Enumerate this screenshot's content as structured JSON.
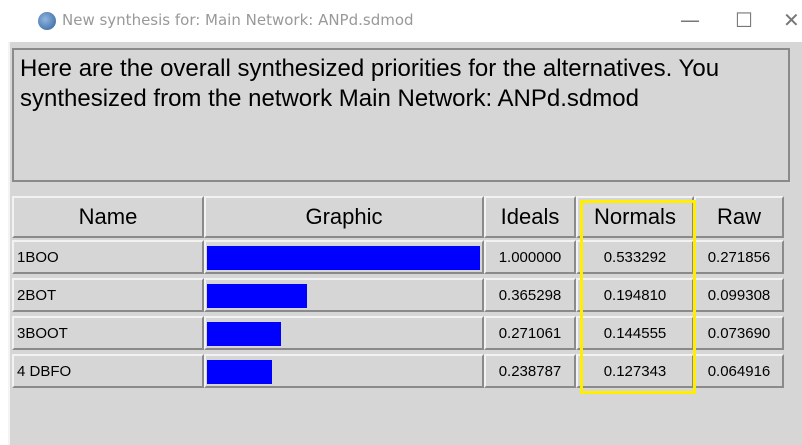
{
  "window": {
    "title": "New synthesis for: Main Network: ANPd.sdmod"
  },
  "message": "Here are the overall synthesized priorities for the alternatives.  You synthesized from the network Main Network: ANPd.sdmod",
  "table": {
    "headers": [
      "Name",
      "Graphic",
      "Ideals",
      "Normals",
      "Raw"
    ],
    "rows": [
      [
        "1BOO",
        "1.000000",
        "0.533292",
        "0.271856"
      ],
      [
        "2BOT",
        "0.365298",
        "0.194810",
        "0.099308"
      ],
      [
        "3BOOT",
        "0.271061",
        "0.144555",
        "0.073690"
      ],
      [
        "4 DBFO",
        "0.238787",
        "0.127343",
        "0.064916"
      ]
    ]
  }
}
